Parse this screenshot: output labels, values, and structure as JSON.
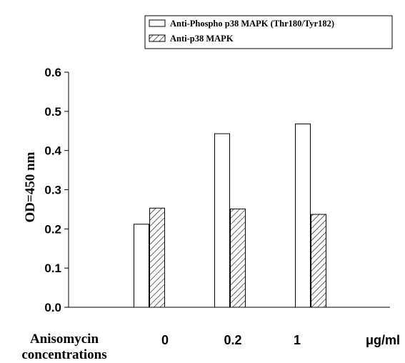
{
  "chart_data": {
    "type": "bar",
    "categories": [
      "0",
      "0.2",
      "1"
    ],
    "unit_label": "μg/ml",
    "xlabel_lines": [
      "Anisomycin",
      "concentrations"
    ],
    "ylabel": "OD=450 nm",
    "ylim": [
      0,
      0.6
    ],
    "yticks": [
      "0.0",
      "0.1",
      "0.2",
      "0.3",
      "0.4",
      "0.5",
      "0.6"
    ],
    "grid": false,
    "legend_position": "top-right",
    "series": [
      {
        "name": "Anti-Phospho p38  MAPK (Thr180/Tyr182)",
        "fill": "open",
        "values": [
          0.212,
          0.443,
          0.468
        ]
      },
      {
        "name": "Anti-p38 MAPK",
        "fill": "hatched",
        "values": [
          0.253,
          0.251,
          0.237
        ]
      }
    ]
  }
}
